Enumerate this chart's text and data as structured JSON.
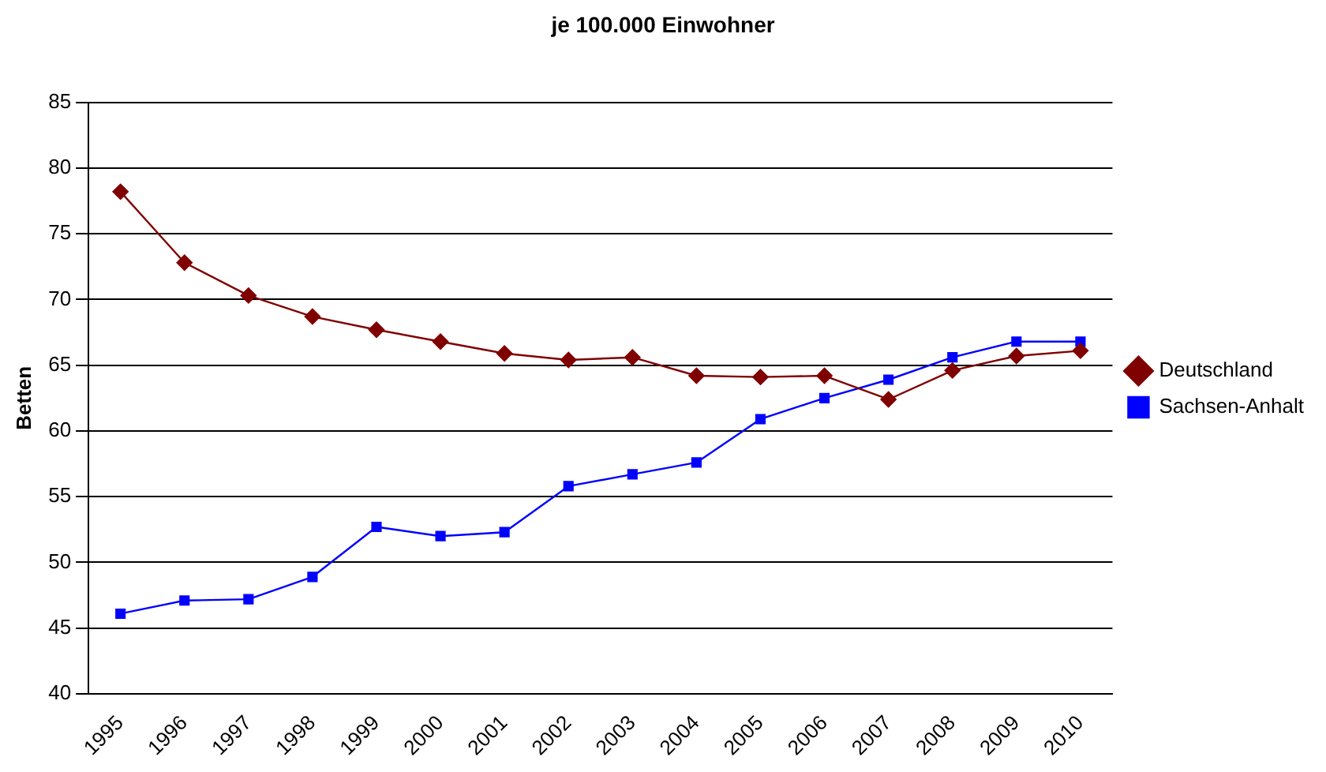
{
  "chart_data": {
    "type": "line",
    "title": "je 100.000 Einwohner",
    "ylabel": "Betten",
    "categories": [
      "1995",
      "1996",
      "1997",
      "1998",
      "1999",
      "2000",
      "2001",
      "2002",
      "2003",
      "2004",
      "2005",
      "2006",
      "2007",
      "2008",
      "2009",
      "2010"
    ],
    "series": [
      {
        "name": "Deutschland",
        "color": "#800000",
        "marker": "diamond",
        "values": [
          78.2,
          72.8,
          70.3,
          68.7,
          67.7,
          66.8,
          65.9,
          65.4,
          65.6,
          64.2,
          64.1,
          64.2,
          62.4,
          64.6,
          65.7,
          66.1
        ]
      },
      {
        "name": "Sachsen-Anhalt",
        "color": "#0000ff",
        "marker": "square",
        "values": [
          46.1,
          47.1,
          47.2,
          48.9,
          52.7,
          52.0,
          52.3,
          55.8,
          56.7,
          57.6,
          60.9,
          62.5,
          63.9,
          65.6,
          66.8,
          66.8
        ]
      }
    ],
    "ylim": [
      40,
      85
    ],
    "yticks": [
      40,
      45,
      50,
      55,
      60,
      65,
      70,
      75,
      80,
      85
    ],
    "grid": "y",
    "legend": "right",
    "line_style": "solid"
  }
}
